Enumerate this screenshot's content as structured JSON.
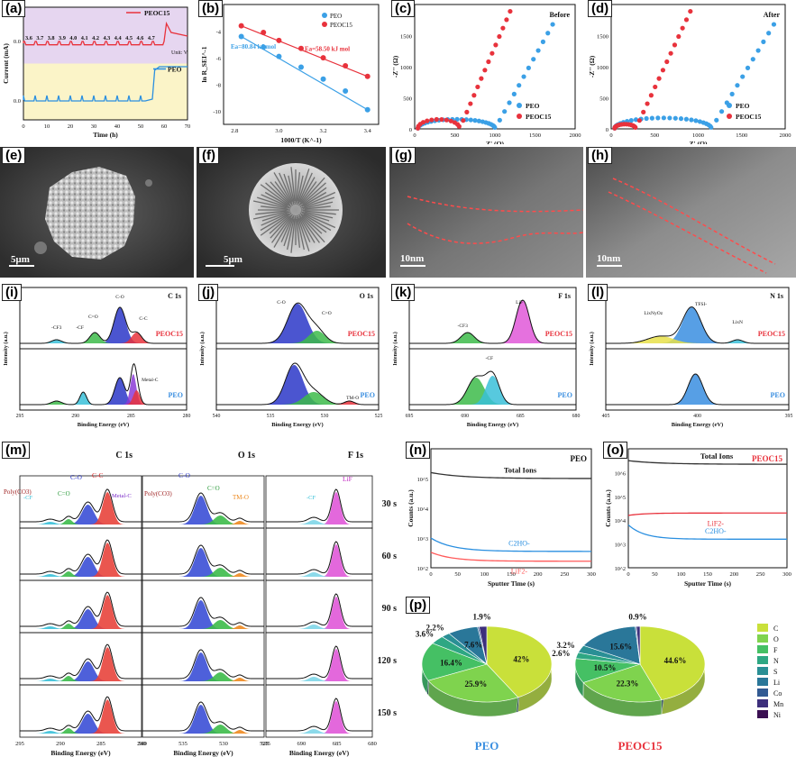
{
  "labels": {
    "a": "(a)",
    "b": "(b)",
    "c": "(c)",
    "d": "(d)",
    "e": "(e)",
    "f": "(f)",
    "g": "(g)",
    "h": "(h)",
    "i": "(i)",
    "j": "(j)",
    "k": "(k)",
    "l": "(l)",
    "m": "(m)",
    "n": "(n)",
    "o": "(o)",
    "p": "(p)"
  },
  "panel_a": {
    "ylabel": "Current (mA)",
    "xlabel": "Time (h)",
    "unit": "Unit: V",
    "legend_top": "PEOC15",
    "legend_bottom": "PEO",
    "voltages": [
      "3.6",
      "3.7",
      "3.8",
      "3.9",
      "4.0",
      "4.1",
      "4.2",
      "4.3",
      "4.4",
      "4.5",
      "4.6",
      "4.7"
    ],
    "xticks": [
      "0",
      "10",
      "20",
      "30",
      "40",
      "50",
      "60",
      "70"
    ],
    "yticks_top": [
      "0.0"
    ],
    "yticks_bottom": [
      "0.0"
    ],
    "colors": {
      "top_bg": "#e6d6f0",
      "bottom_bg": "#fbf4c8",
      "red": "#e8323c",
      "blue": "#2a8fe0"
    }
  },
  "chart_data": [
    {
      "type": "scatter",
      "title": "(b)",
      "xlabel": "1000/T (K^-1)",
      "ylabel": "ln R_SEI^-1",
      "xlim": [
        2.75,
        3.45
      ],
      "ylim": [
        -11,
        -2
      ],
      "xticks": [
        "2.8",
        "3.0",
        "3.2",
        "3.4"
      ],
      "yticks": [
        "-2",
        "-4",
        "-6",
        "-8",
        "-10"
      ],
      "series": [
        {
          "name": "PEO",
          "color": "#3ba0e6",
          "x": [
            2.83,
            2.93,
            3.0,
            3.1,
            3.2,
            3.3,
            3.4
          ],
          "y": [
            -4.4,
            -5.2,
            -5.9,
            -6.7,
            -7.6,
            -8.5,
            -9.9
          ]
        },
        {
          "name": "PEOC15",
          "color": "#e8323c",
          "x": [
            2.83,
            2.93,
            3.0,
            3.1,
            3.2,
            3.3,
            3.4
          ],
          "y": [
            -3.6,
            -4.1,
            -4.7,
            -5.3,
            -6.0,
            -6.6,
            -7.4
          ]
        }
      ],
      "annotations": [
        "Ea=58.50 kJ mol-1",
        "Ea=80.84 kJ mol-1"
      ]
    },
    {
      "type": "scatter",
      "title": "(c)",
      "note": "Before",
      "xlabel": "Z' (Ω)",
      "ylabel": "-Z'' (Ω)",
      "xlim": [
        0,
        2000
      ],
      "ylim": [
        0,
        2000
      ],
      "xticks": [
        "0",
        "500",
        "1000",
        "1500",
        "2000"
      ],
      "yticks": [
        "0",
        "500",
        "1000",
        "1500",
        "2000"
      ],
      "series": [
        {
          "name": "PEO",
          "color": "#3ba0e6"
        },
        {
          "name": "PEOC15",
          "color": "#e8323c"
        }
      ]
    },
    {
      "type": "scatter",
      "title": "(d)",
      "note": "After",
      "xlabel": "Z' (Ω)",
      "ylabel": "-Z'' (Ω)",
      "xlim": [
        0,
        2000
      ],
      "ylim": [
        0,
        2000
      ],
      "xticks": [
        "0",
        "500",
        "1000",
        "1500",
        "2000"
      ],
      "yticks": [
        "0",
        "500",
        "1000",
        "1500",
        "2000"
      ],
      "series": [
        {
          "name": "PEO",
          "color": "#3ba0e6"
        },
        {
          "name": "PEOC15",
          "color": "#e8323c"
        }
      ]
    },
    {
      "type": "pie",
      "title": "(p)",
      "legend": [
        "C",
        "O",
        "F",
        "N",
        "S",
        "Li",
        "Co",
        "Mn",
        "Ni"
      ],
      "colors": [
        "#c9e03a",
        "#7fd34e",
        "#45c064",
        "#2ea783",
        "#2a8f95",
        "#2a7799",
        "#325a92",
        "#3d2f7c",
        "#3a0f52"
      ],
      "pies": [
        {
          "name": "PEO",
          "values": [
            42,
            25.9,
            16.4,
            3.6,
            2.2,
            7.6,
            0.4,
            1.9,
            0.0
          ],
          "labels": {
            "C": "42%",
            "O": "25.9%",
            "F": "16.4%",
            "N": "3.6%",
            "S": "2.2%",
            "Li": "7.6%",
            "Mn": "1.9%"
          }
        },
        {
          "name": "PEOC15",
          "values": [
            44.6,
            22.3,
            10.5,
            2.6,
            3.2,
            15.6,
            0.3,
            0.9,
            0.0
          ],
          "labels": {
            "C": "44.6%",
            "O": "22.3%",
            "F": "10.5%",
            "N": "2.6%",
            "S": "3.2%",
            "Li": "15.6%",
            "Mn": "0.9%"
          }
        }
      ]
    }
  ],
  "panel_b": {
    "legend": [
      "PEO",
      "PEOC15"
    ],
    "ea_red": "Ea=58.50 kJ mol",
    "ea_blue": "Ea=80.84 kJ mol"
  },
  "panel_cd": {
    "before": "Before",
    "after": "After",
    "legend": [
      "PEO",
      "PEOC15"
    ]
  },
  "micro": {
    "scale_e": "5μm",
    "scale_f": "5μm",
    "scale_g": "10nm",
    "scale_h": "10nm"
  },
  "xps_top": {
    "ylabel": "Intensity (a.u.)",
    "xlabel": "Binding Energy (eV)",
    "i": {
      "title": "C 1s",
      "peaks": [
        "C-O",
        "C=O",
        "-CF",
        "-CF3",
        "C-C",
        "Metal-C"
      ],
      "series": [
        "PEOC15",
        "PEO"
      ],
      "ticks": [
        "295",
        "290",
        "285",
        "280"
      ]
    },
    "j": {
      "title": "O 1s",
      "peaks": [
        "C-O",
        "C=O",
        "TM-O"
      ],
      "series": [
        "PEOC15",
        "PEO"
      ],
      "ticks": [
        "540",
        "535",
        "530",
        "525"
      ]
    },
    "k": {
      "title": "F 1s",
      "peaks": [
        "LiF",
        "-CF3",
        "-CF"
      ],
      "series": [
        "PEOC15",
        "PEO"
      ],
      "ticks": [
        "695",
        "690",
        "685",
        "680"
      ]
    },
    "l": {
      "title": "N 1s",
      "peaks": [
        "TFSI-",
        "LixNyOz",
        "LixN"
      ],
      "series": [
        "PEOC15",
        "PEO"
      ],
      "ticks": [
        "405",
        "400",
        "395"
      ]
    }
  },
  "panel_m": {
    "headers": [
      "C 1s",
      "O 1s",
      "F 1s"
    ],
    "peaks_c": [
      "Poly(CO3)",
      "C-O",
      "C-C",
      "C=O",
      "-CF",
      "Metal-C"
    ],
    "peaks_o": [
      "C-O",
      "C=O",
      "Poly(CO3)",
      "TM-O"
    ],
    "peaks_f": [
      "LiF",
      "-CF"
    ],
    "times": [
      "30 s",
      "60 s",
      "90 s",
      "120 s",
      "150 s"
    ],
    "xlabel": "Binding Energy (eV)",
    "ticks_c": [
      "295",
      "290",
      "285",
      "280"
    ],
    "ticks_o": [
      "540",
      "535",
      "530",
      "525"
    ],
    "ticks_f": [
      "695",
      "690",
      "685",
      "680"
    ]
  },
  "panel_n": {
    "title": "PEO",
    "total": "Total Ions",
    "s1": "C2HO-",
    "s2": "LiF2-",
    "ylabel": "Counts (a.u.)",
    "xlabel": "Sputter Time (s)",
    "xticks": [
      "0",
      "50",
      "100",
      "150",
      "200",
      "250",
      "300"
    ],
    "yticks": [
      "10^2",
      "10^3",
      "10^4",
      "10^5",
      "10^6"
    ]
  },
  "panel_o": {
    "title": "PEOC15",
    "total": "Total Ions",
    "s1": "LiF2-",
    "s2": "C2HO-",
    "ylabel": "Counts (a.u.)",
    "xlabel": "Sputter Time (s)",
    "xticks": [
      "0",
      "50",
      "100",
      "150",
      "200",
      "250",
      "300"
    ],
    "yticks": [
      "10^2",
      "10^3",
      "10^4",
      "10^5",
      "10^6",
      "10^7"
    ]
  },
  "panel_p": {
    "peo": "PEO",
    "peoc": "PEOC15"
  }
}
